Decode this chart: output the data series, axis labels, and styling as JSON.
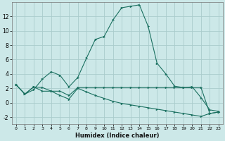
{
  "xlabel": "Humidex (Indice chaleur)",
  "bg_color": "#cce8e8",
  "grid_color": "#aacccc",
  "line_color": "#1a7060",
  "xlim": [
    -0.5,
    23.5
  ],
  "ylim": [
    -3.0,
    14.0
  ],
  "yticks": [
    -2,
    0,
    2,
    4,
    6,
    8,
    10,
    12
  ],
  "xticks": [
    0,
    1,
    2,
    3,
    4,
    5,
    6,
    7,
    8,
    9,
    10,
    11,
    12,
    13,
    14,
    15,
    16,
    17,
    18,
    19,
    20,
    21,
    22,
    23
  ],
  "curve1_x": [
    0,
    1,
    2,
    3,
    4,
    5,
    6,
    7,
    8,
    9,
    10,
    11,
    12,
    13,
    14,
    15,
    16,
    17,
    18,
    19,
    20,
    21,
    22,
    23
  ],
  "curve1_y": [
    2.5,
    1.2,
    1.8,
    3.3,
    4.3,
    3.8,
    2.2,
    3.5,
    6.2,
    8.8,
    9.2,
    11.5,
    13.2,
    13.4,
    13.6,
    10.6,
    5.5,
    4.0,
    2.3,
    2.1,
    2.2,
    0.7,
    -1.0,
    -1.2
  ],
  "curve2_x": [
    0,
    1,
    2,
    3,
    4,
    5,
    6,
    7,
    8,
    9,
    10,
    11,
    12,
    13,
    14,
    15,
    16,
    17,
    18,
    19,
    20,
    21,
    22,
    23
  ],
  "curve2_y": [
    2.5,
    1.2,
    2.2,
    2.1,
    1.6,
    1.6,
    1.0,
    2.1,
    2.1,
    2.1,
    2.1,
    2.1,
    2.1,
    2.1,
    2.1,
    2.1,
    2.1,
    2.1,
    2.1,
    2.1,
    2.1,
    2.1,
    -1.5,
    -1.3
  ],
  "curve3_x": [
    0,
    1,
    2,
    3,
    4,
    5,
    6,
    7,
    8,
    9,
    10,
    11,
    12,
    13,
    14,
    15,
    16,
    17,
    18,
    19,
    20,
    21,
    22,
    23
  ],
  "curve3_y": [
    2.5,
    1.2,
    2.2,
    1.6,
    1.6,
    1.0,
    0.5,
    2.0,
    1.5,
    1.0,
    0.6,
    0.2,
    -0.1,
    -0.3,
    -0.5,
    -0.7,
    -0.9,
    -1.1,
    -1.3,
    -1.5,
    -1.7,
    -1.9,
    -1.5,
    -1.3
  ]
}
